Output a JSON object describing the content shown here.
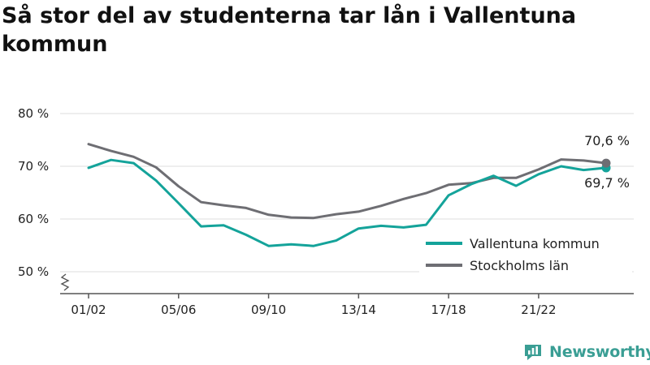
{
  "title": "Så stor del av studenterna tar lån i Vallentuna kommun",
  "brand": {
    "name": "Newsworthy",
    "icon": "newsworthy-logo-icon",
    "color": "#3a9e94"
  },
  "chart_data": {
    "type": "line",
    "title": "Så stor del av studenterna tar lån i Vallentuna kommun",
    "xlabel": "",
    "ylabel": "",
    "ylim": [
      50,
      80
    ],
    "y_ticks": [
      50,
      60,
      70,
      80
    ],
    "y_tick_labels": [
      "50 %",
      "60 %",
      "70 %",
      "80 %"
    ],
    "y_axis_break": true,
    "x_tick_labels": [
      "01/02",
      "05/06",
      "09/10",
      "13/14",
      "17/18",
      "21/22"
    ],
    "x": [
      "01/02",
      "02/03",
      "03/04",
      "04/05",
      "05/06",
      "06/07",
      "07/08",
      "08/09",
      "09/10",
      "10/11",
      "11/12",
      "12/13",
      "13/14",
      "14/15",
      "15/16",
      "16/17",
      "17/18",
      "18/19",
      "19/20",
      "20/21",
      "21/22",
      "22/23",
      "23/24",
      "24/25"
    ],
    "grid": "horizontal",
    "legend_position": "bottom-right",
    "series": [
      {
        "name": "Vallentuna kommun",
        "color": "#14a39a",
        "values": [
          69.7,
          71.2,
          70.6,
          67.3,
          63.0,
          58.6,
          58.8,
          57.0,
          54.9,
          55.2,
          54.9,
          55.9,
          58.2,
          58.7,
          58.4,
          58.9,
          64.5,
          66.6,
          68.2,
          66.3,
          68.5,
          70.0,
          69.3,
          69.7
        ],
        "end_label": "69,7 %"
      },
      {
        "name": "Stockholms län",
        "color": "#6e6e73",
        "values": [
          74.2,
          72.9,
          71.8,
          69.8,
          66.2,
          63.2,
          62.6,
          62.1,
          60.8,
          60.3,
          60.2,
          60.9,
          61.4,
          62.5,
          63.8,
          64.9,
          66.5,
          66.8,
          67.8,
          67.8,
          69.4,
          71.3,
          71.1,
          70.6
        ],
        "end_label": "70,6 %"
      }
    ]
  }
}
